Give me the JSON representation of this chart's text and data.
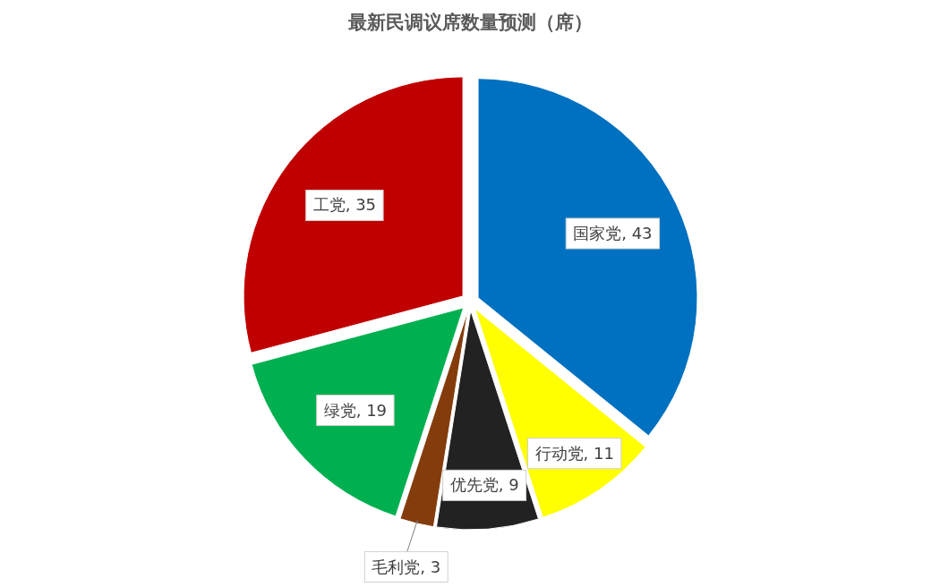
{
  "chart_data": {
    "type": "pie",
    "title": "最新民调议席数量预测（席）",
    "categories": [
      "国家党",
      "行动党",
      "优先党",
      "毛利党",
      "绿党",
      "工党"
    ],
    "values": [
      43,
      11,
      9,
      3,
      19,
      35
    ],
    "value_labels": [
      ", 43",
      ", 11",
      ", 9",
      ", 3",
      ", 19",
      ", 35"
    ],
    "colors": [
      "#0070c0",
      "#ffff00",
      "#222222",
      "#843c0c",
      "#00b050",
      "#c00000"
    ]
  }
}
